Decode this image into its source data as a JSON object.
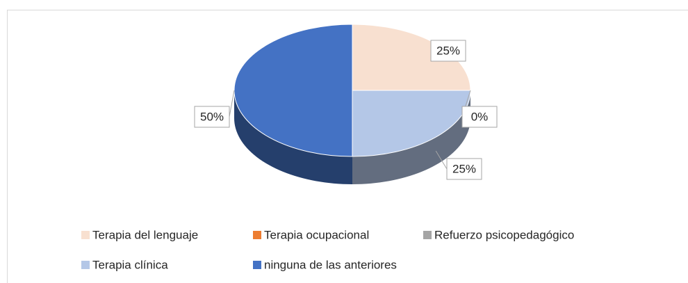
{
  "chart_data": {
    "type": "pie",
    "categories": [
      "Terapia del lenguaje",
      "Terapia ocupacional",
      "Refuerzo psicopedagógico",
      "Terapia clínica",
      "ninguna de las anteriores"
    ],
    "values": [
      25,
      0,
      0,
      25,
      50
    ],
    "value_labels": [
      "25%",
      "0%",
      null,
      "25%",
      "50%"
    ],
    "colors": [
      "#f8e0d0",
      "#ed7d31",
      "#a5a5a5",
      "#b4c7e7",
      "#4472c4"
    ],
    "legend": "bottom"
  }
}
